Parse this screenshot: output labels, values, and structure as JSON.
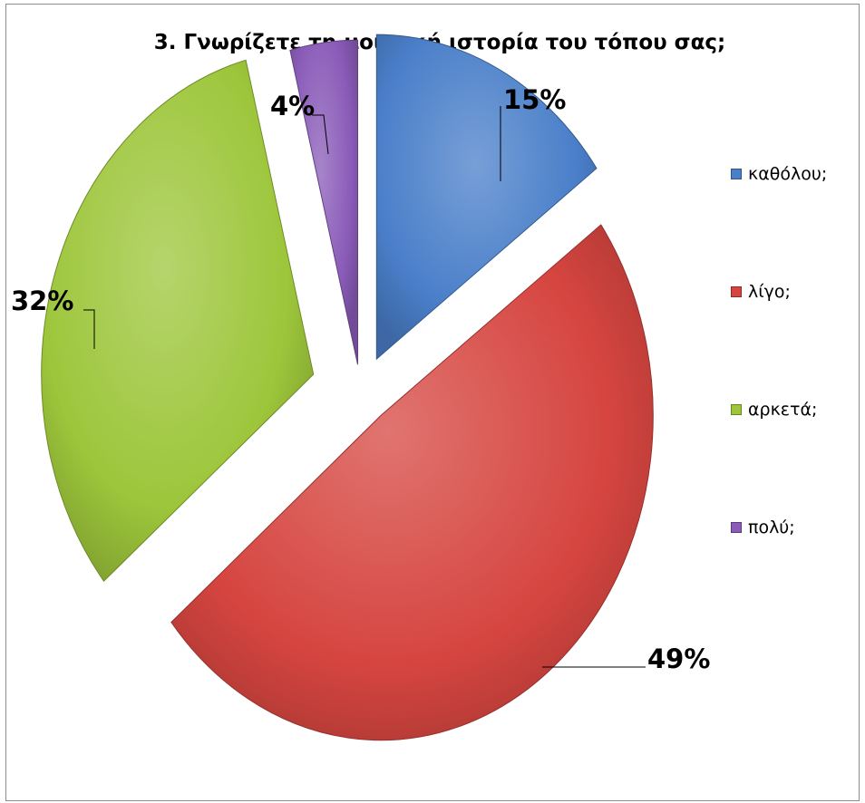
{
  "chart_data": {
    "type": "pie",
    "title": "3. Γνωρίζετε τη μουσική ιστορία του τόπου σας;",
    "categories": [
      "καθόλου;",
      "λίγο;",
      "αρκετά;",
      "πολύ;"
    ],
    "values": [
      15,
      49,
      32,
      4
    ],
    "labels": [
      "15%",
      "49%",
      "32%",
      "4%"
    ],
    "colors": [
      "#4a7fc9",
      "#d64540",
      "#9dc63b",
      "#8a5bb8"
    ],
    "exploded": true,
    "legend_position": "right"
  }
}
